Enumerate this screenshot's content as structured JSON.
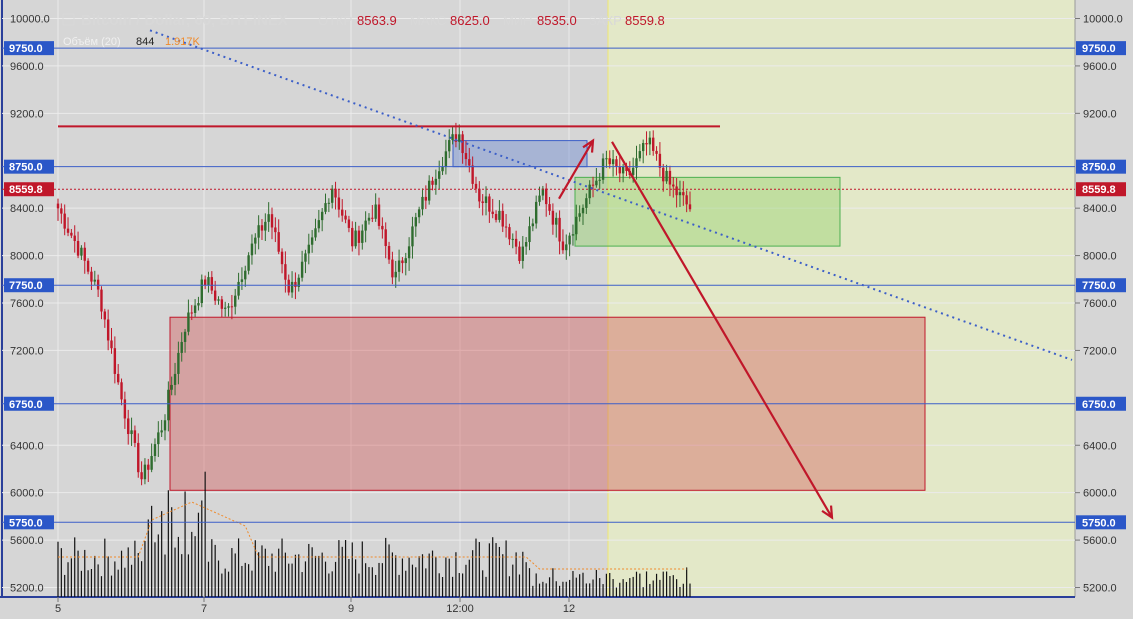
{
  "header": {
    "title": "Bitcoin / Dollar, 60, BITFINEX",
    "open_label": "ОТКР",
    "open_value": "8563.9",
    "high_label": "МАКС",
    "high_value": "8625.0",
    "low_label": "МИН",
    "low_value": "8535.0",
    "close_label": "ЗАКР",
    "close_value": "8559.8",
    "volume_label": "Объём (20)",
    "volume_value": "844",
    "volume_ma_value": "1.917K"
  },
  "chart_data": {
    "type": "candlestick",
    "y_axis": {
      "min": 5100,
      "max": 10100,
      "ticks": [
        "10000.0",
        "9600.0",
        "9200.0",
        "8400.0",
        "8000.0",
        "7600.0",
        "7200.0",
        "6400.0",
        "6000.0",
        "5600.0",
        "5200.0"
      ]
    },
    "x_axis": {
      "ticks": [
        "5",
        "7",
        "9",
        "12:00",
        "12"
      ]
    },
    "horizontal_levels": [
      {
        "price": 9750,
        "label": "9750.0",
        "color": "#3c5fc8"
      },
      {
        "price": 8750,
        "label": "8750.0",
        "color": "#3c5fc8"
      },
      {
        "price": 7750,
        "label": "7750.0",
        "color": "#3c5fc8"
      },
      {
        "price": 6750,
        "label": "6750.0",
        "color": "#3c5fc8"
      },
      {
        "price": 5750,
        "label": "5750.0",
        "color": "#3c5fc8"
      }
    ],
    "current_price": {
      "price": 8559.8,
      "label": "8559.8",
      "color": "#c0172a"
    },
    "resistance": {
      "price": 9090,
      "color": "#c0172a"
    },
    "trendline": {
      "from_price": 9900,
      "to_price": 7120,
      "style": "dotted",
      "color": "#3c5fc8"
    },
    "zones": [
      {
        "name": "red-zone",
        "top": 7480,
        "bottom": 6020,
        "color": "#c0172a"
      },
      {
        "name": "green-zone",
        "top": 8660,
        "bottom": 8080,
        "color": "#4caf50"
      },
      {
        "name": "blue-zone",
        "top": 8970,
        "bottom": 8750,
        "color": "#3c5fc8"
      }
    ],
    "arrows": [
      {
        "name": "up-arrow",
        "from_price": 8480,
        "to_price": 8970
      },
      {
        "name": "down-arrow",
        "from_price": 8960,
        "to_price": 5790
      }
    ],
    "price_path": [
      8400,
      8050,
      7650,
      6800,
      6100,
      6600,
      7400,
      7800,
      7500,
      8000,
      8350,
      7700,
      8050,
      8600,
      8100,
      8400,
      7800,
      8300,
      8750,
      9050,
      8500,
      8350,
      8000,
      8550,
      8100,
      8450,
      8800,
      8650,
      8950,
      8600,
      8400
    ],
    "colors": {
      "up": "#2f6c2f",
      "down": "#c0172a",
      "background": "#d6d6d6",
      "forecast_background": "#e3e8c8"
    }
  }
}
